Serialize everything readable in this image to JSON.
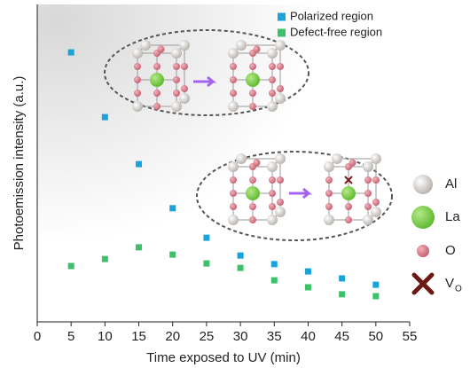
{
  "chart_data": {
    "type": "scatter",
    "xlabel": "Time exposed to UV (min)",
    "ylabel": "Photoemission intensity (a.u.)",
    "xlim": [
      0,
      55
    ],
    "xticks": [
      0,
      5,
      10,
      15,
      20,
      25,
      30,
      35,
      40,
      45,
      50,
      55
    ],
    "ylim": [
      0,
      100
    ],
    "series": [
      {
        "name": "Polarized region",
        "color": "#1aa3db",
        "x": [
          5,
          10,
          15,
          20,
          25,
          30,
          35,
          40,
          45,
          50
        ],
        "values": [
          84.9,
          64.5,
          49.7,
          35.8,
          26.5,
          20.9,
          18.2,
          15.9,
          13.7,
          11.7
        ]
      },
      {
        "name": "Defect-free region",
        "color": "#3cc06a",
        "x": [
          5,
          10,
          15,
          20,
          25,
          30,
          35,
          40,
          45,
          50
        ],
        "values": [
          17.6,
          19.8,
          23.5,
          21.2,
          18.4,
          17.0,
          13.1,
          10.9,
          8.7,
          8.1
        ]
      }
    ],
    "atom_legend": [
      "Al",
      "La",
      "O",
      "V"
    ],
    "atom_legend_subscript": "O"
  }
}
